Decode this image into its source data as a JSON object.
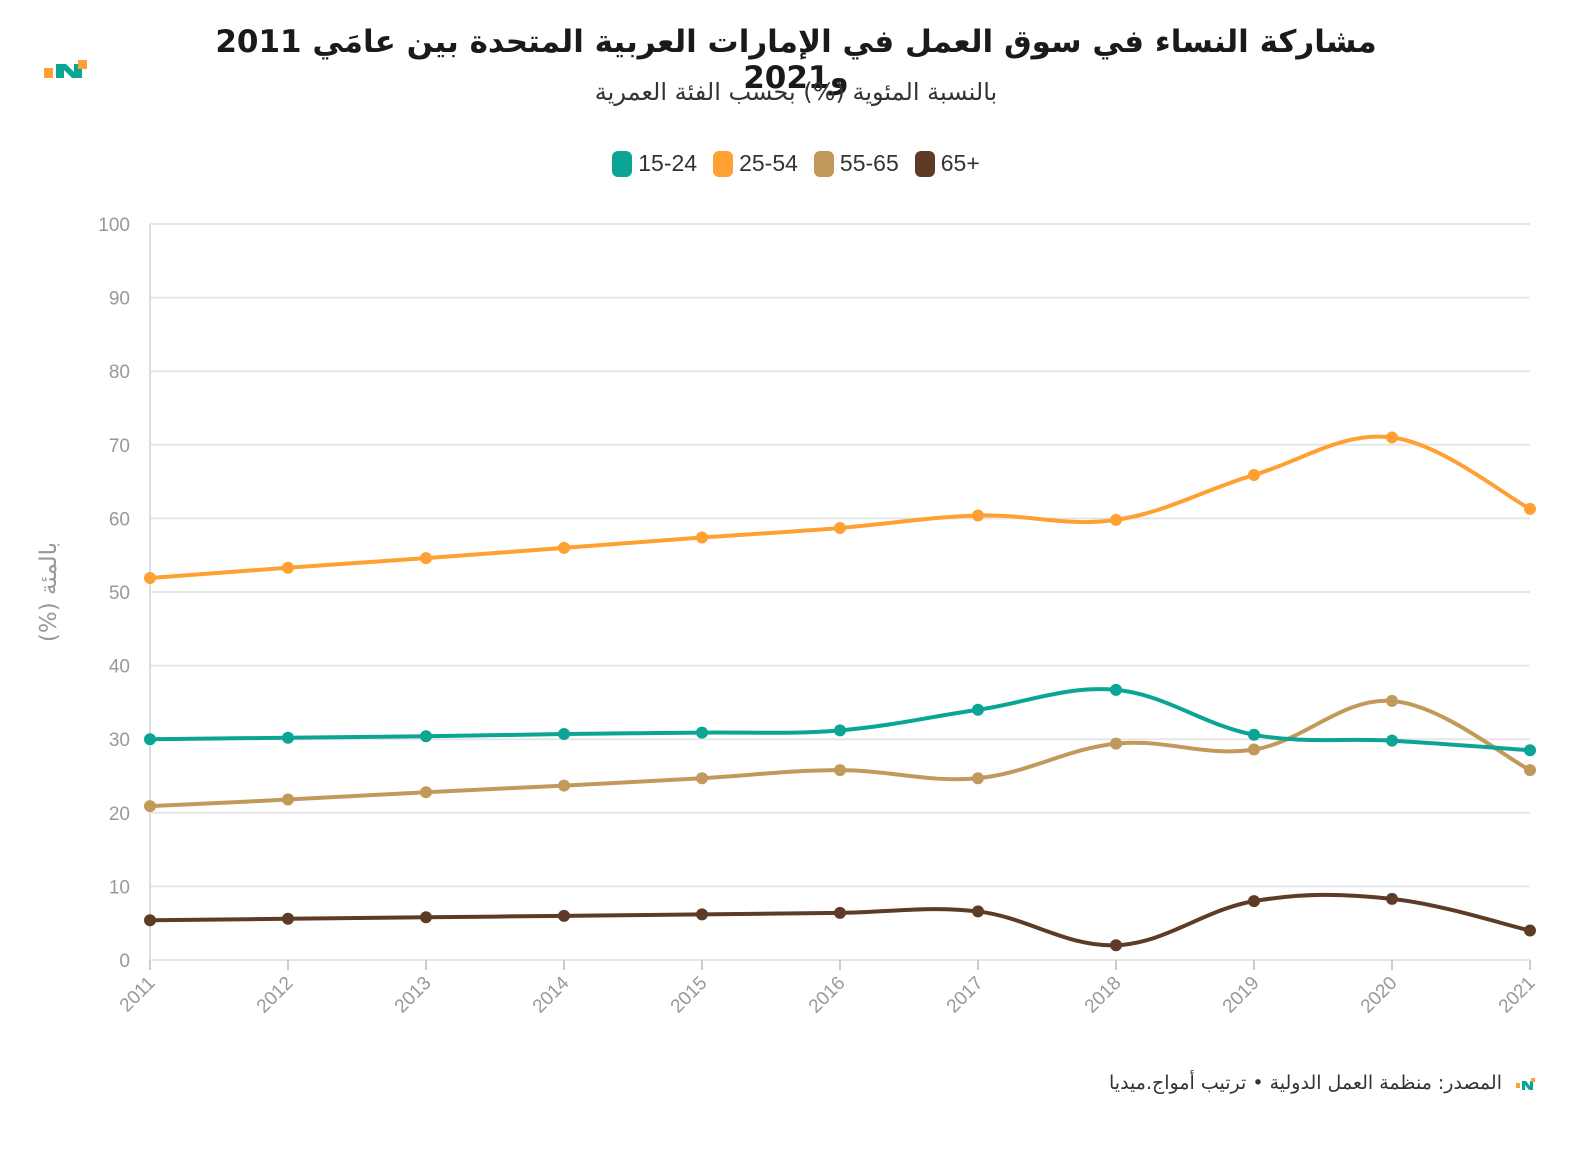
{
  "header": {
    "title": "مشاركة النساء في سوق العمل في الإمارات العربية المتحدة بين عامَي 2011 و2021",
    "subtitle": "بالنسبة المئوية (%) بحسب الفئة العمرية",
    "logo": "amwaj-media-logo"
  },
  "footer": {
    "source": "المصدر: منظمة العمل الدولية • ترتيب أمواج.ميديا"
  },
  "colors": {
    "teal": "#0aa594",
    "orange": "#ffa033",
    "tan": "#c19a5b",
    "brown": "#5e3b26",
    "grid": "#e6e6e6",
    "axis_text": "#999999"
  },
  "chart_data": {
    "type": "line",
    "title": "مشاركة النساء في سوق العمل في الإمارات العربية المتحدة بين عامَي 2011 و2021",
    "ylabel": "بالمئة (%)",
    "xlabel": "",
    "ylim": [
      0,
      100
    ],
    "yticks": [
      0,
      10,
      20,
      30,
      40,
      50,
      60,
      70,
      80,
      90,
      100
    ],
    "grid": true,
    "legend_position": "top-center",
    "x": [
      "2011",
      "2012",
      "2013",
      "2014",
      "2015",
      "2016",
      "2017",
      "2018",
      "2019",
      "2020",
      "2021"
    ],
    "series": [
      {
        "name": "15-24",
        "color": "#0aa594",
        "values": [
          30,
          30.2,
          30.4,
          30.7,
          30.9,
          31.2,
          34,
          36.7,
          30.6,
          29.8,
          28.5
        ]
      },
      {
        "name": "25-54",
        "color": "#ffa033",
        "values": [
          51.9,
          53.3,
          54.6,
          56,
          57.4,
          58.7,
          60.4,
          59.8,
          65.9,
          71,
          61.3
        ]
      },
      {
        "name": "55-65",
        "color": "#c19a5b",
        "values": [
          20.9,
          21.8,
          22.8,
          23.7,
          24.7,
          25.8,
          24.7,
          29.4,
          28.6,
          35.2,
          25.8
        ]
      },
      {
        "name": "65+",
        "color": "#5e3b26",
        "values": [
          5.4,
          5.6,
          5.8,
          6,
          6.2,
          6.4,
          6.6,
          2,
          8,
          8.3,
          4
        ]
      }
    ]
  }
}
